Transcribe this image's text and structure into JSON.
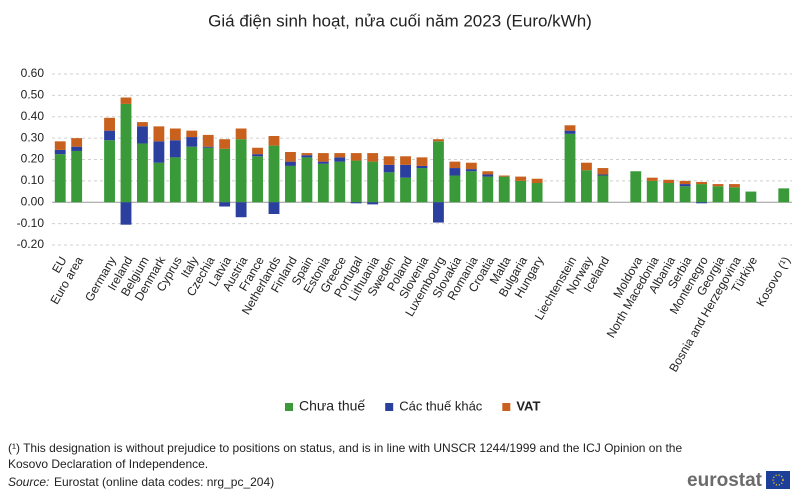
{
  "chart_data": {
    "type": "bar",
    "stacked": true,
    "title": "Giá điện sinh hoạt, nửa cuối năm 2023 (Euro/kWh)",
    "categories": [
      "EU",
      "Euro area",
      null,
      "Germany",
      "Ireland",
      "Belgium",
      "Denmark",
      "Cyprus",
      "Italy",
      "Czechia",
      "Latvia",
      "Austria",
      "France",
      "Netherlands",
      "Finland",
      "Spain",
      "Estonia",
      "Greece",
      "Portugal",
      "Lithuania",
      "Sweden",
      "Poland",
      "Slovenia",
      "Luxembourg",
      "Slovakia",
      "Romania",
      "Croatia",
      "Malta",
      "Bulgaria",
      "Hungary",
      null,
      "Liechtenstein",
      "Norway",
      "Iceland",
      null,
      "Moldova",
      "North Macedonia",
      "Albania",
      "Serbia",
      "Montenegro",
      "Georgia",
      "Bosnia and Herzegovina",
      "Türkiye",
      null,
      "Kosovo (¹)"
    ],
    "series": [
      {
        "name": "Chưa thuế",
        "color": "#3a9a3a",
        "values": [
          0.225,
          0.24,
          null,
          0.29,
          0.46,
          0.275,
          0.185,
          0.21,
          0.26,
          0.255,
          0.25,
          0.295,
          0.215,
          0.265,
          0.17,
          0.21,
          0.18,
          0.19,
          0.195,
          0.19,
          0.14,
          0.115,
          0.16,
          0.285,
          0.125,
          0.145,
          0.12,
          0.12,
          0.1,
          0.09,
          null,
          0.32,
          0.15,
          0.125,
          null,
          0.145,
          0.1,
          0.09,
          0.075,
          0.085,
          0.075,
          0.07,
          0.05,
          null,
          0.065
        ]
      },
      {
        "name": "Các thuế khác",
        "color": "#2b3f9e",
        "values": [
          0.02,
          0.02,
          null,
          0.045,
          -0.105,
          0.08,
          0.1,
          0.08,
          0.045,
          0.005,
          -0.02,
          -0.07,
          0.01,
          -0.055,
          0.02,
          0.01,
          0.01,
          0.02,
          -0.005,
          -0.01,
          0.035,
          0.06,
          0.01,
          -0.095,
          0.035,
          0.01,
          0.01,
          0.0,
          0.0,
          0.0,
          null,
          0.015,
          0.0,
          0.005,
          null,
          0.0,
          0.0,
          0.0,
          0.01,
          -0.005,
          0.0,
          0.0,
          0.0,
          null,
          0.0
        ]
      },
      {
        "name": "VAT",
        "color": "#c8601e",
        "values": [
          0.04,
          0.04,
          null,
          0.06,
          0.03,
          0.02,
          0.07,
          0.055,
          0.03,
          0.055,
          0.045,
          0.05,
          0.03,
          0.045,
          0.045,
          0.01,
          0.04,
          0.02,
          0.035,
          0.04,
          0.04,
          0.04,
          0.04,
          0.01,
          0.03,
          0.03,
          0.015,
          0.005,
          0.02,
          0.02,
          null,
          0.025,
          0.035,
          0.03,
          null,
          0.0,
          0.015,
          0.015,
          0.015,
          0.01,
          0.01,
          0.015,
          0.0,
          null,
          0.0
        ]
      }
    ],
    "ylim": [
      -0.2,
      0.6
    ],
    "yticks": [
      {
        "value": -0.2,
        "label": "-0.20"
      },
      {
        "value": -0.1,
        "label": "-0.10"
      },
      {
        "value": 0,
        "label": "0.00"
      },
      {
        "value": 0.1,
        "label": "0.10"
      },
      {
        "value": 0.2,
        "label": "0.20"
      },
      {
        "value": 0.3,
        "label": "0.30"
      },
      {
        "value": 0.4,
        "label": "0.40"
      },
      {
        "value": 0.5,
        "label": "0.50"
      },
      {
        "value": 0.6,
        "label": "0.60"
      }
    ],
    "grid": true,
    "legend": "bottom"
  },
  "footnote": "(¹) This designation is without prejudice to positions on status, and is in line with UNSCR 1244/1999 and the ICJ Opinion on the Kosovo Declaration of Independence.",
  "source_label": "Source:",
  "source_text": "Eurostat (online data codes: nrg_pc_204)",
  "logo": "eurostat"
}
